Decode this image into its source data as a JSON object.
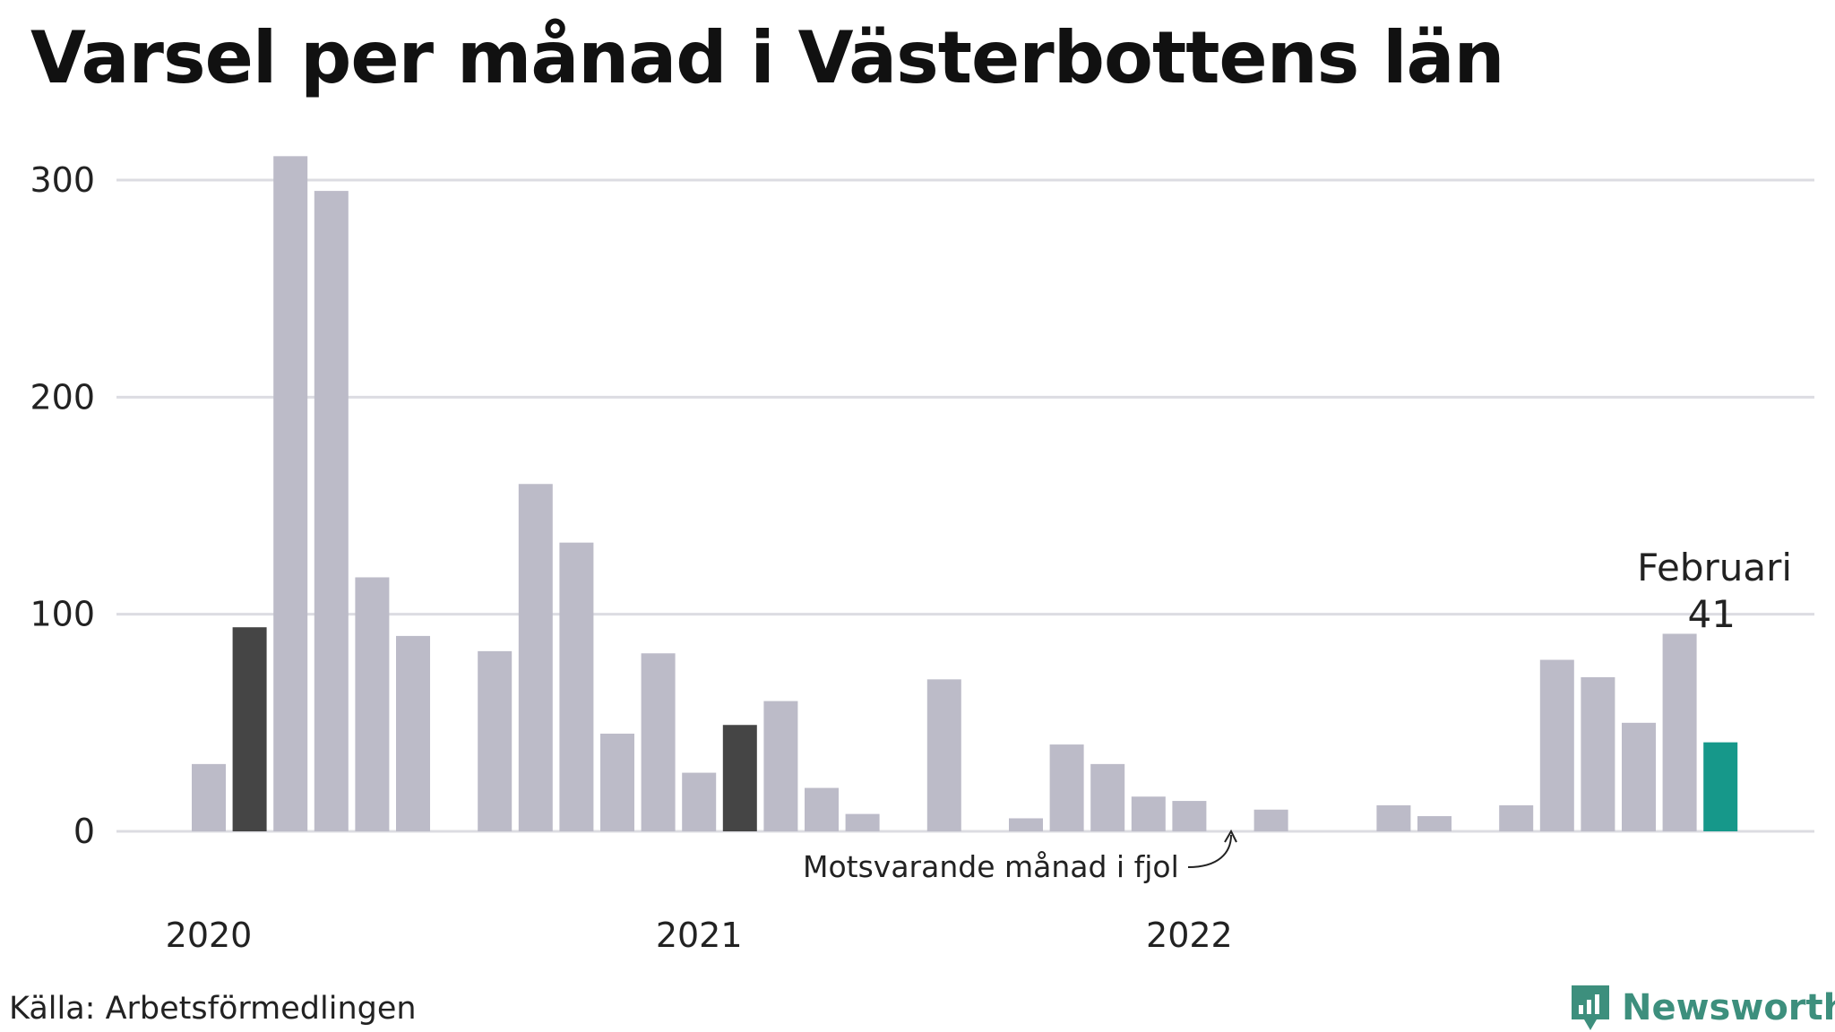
{
  "title": "Varsel per månad i Västerbottens län",
  "source": "Källa: Arbetsförmedlingen",
  "brand": "Newsworthy",
  "colors": {
    "default": "#bcbbc8",
    "previous_year": "#454545",
    "current": "#16988a",
    "grid": "#dcdce2",
    "brand": "#3d8f7d"
  },
  "chart_data": {
    "type": "bar",
    "title": "Varsel per månad i Västerbottens län",
    "xlabel": "",
    "ylabel": "",
    "ylim": [
      0,
      320
    ],
    "yticks": [
      0,
      100,
      200,
      300
    ],
    "grid": true,
    "x_labels": [
      {
        "label": "2020",
        "index": 0
      },
      {
        "label": "2021",
        "index": 12
      },
      {
        "label": "2022",
        "index": 24
      }
    ],
    "bars": [
      {
        "month": "2020-01",
        "value": 31
      },
      {
        "month": "2020-02",
        "value": 94,
        "highlight": "previous_year"
      },
      {
        "month": "2020-03",
        "value": 311
      },
      {
        "month": "2020-04",
        "value": 295
      },
      {
        "month": "2020-05",
        "value": 117
      },
      {
        "month": "2020-06",
        "value": 90
      },
      {
        "month": "2020-07",
        "value": 0
      },
      {
        "month": "2020-08",
        "value": 83
      },
      {
        "month": "2020-09",
        "value": 160
      },
      {
        "month": "2020-10",
        "value": 133
      },
      {
        "month": "2020-11",
        "value": 45
      },
      {
        "month": "2020-12",
        "value": 82
      },
      {
        "month": "2021-01",
        "value": 27
      },
      {
        "month": "2021-02",
        "value": 49,
        "highlight": "previous_year"
      },
      {
        "month": "2021-03",
        "value": 60
      },
      {
        "month": "2021-04",
        "value": 20
      },
      {
        "month": "2021-05",
        "value": 8
      },
      {
        "month": "2021-06",
        "value": 0
      },
      {
        "month": "2021-07",
        "value": 70
      },
      {
        "month": "2021-08",
        "value": 0
      },
      {
        "month": "2021-09",
        "value": 6
      },
      {
        "month": "2021-10",
        "value": 40
      },
      {
        "month": "2021-11",
        "value": 31
      },
      {
        "month": "2021-12",
        "value": 16
      },
      {
        "month": "2022-01",
        "value": 14
      },
      {
        "month": "2022-02",
        "value": 0,
        "highlight": "previous_year"
      },
      {
        "month": "2022-03",
        "value": 10
      },
      {
        "month": "2022-04",
        "value": 0
      },
      {
        "month": "2022-05",
        "value": 0
      },
      {
        "month": "2022-06",
        "value": 12
      },
      {
        "month": "2022-07",
        "value": 7
      },
      {
        "month": "2022-08",
        "value": 0
      },
      {
        "month": "2022-09",
        "value": 12
      },
      {
        "month": "2022-10",
        "value": 79
      },
      {
        "month": "2022-11",
        "value": 71
      },
      {
        "month": "2022-12",
        "value": 50
      },
      {
        "month": "2023-01",
        "value": 91
      },
      {
        "month": "2023-02",
        "value": 41,
        "highlight": "current"
      }
    ],
    "annotations": {
      "previous_month": "Motsvarande månad i fjol",
      "current_label": "Februari",
      "current_value": "41"
    }
  }
}
